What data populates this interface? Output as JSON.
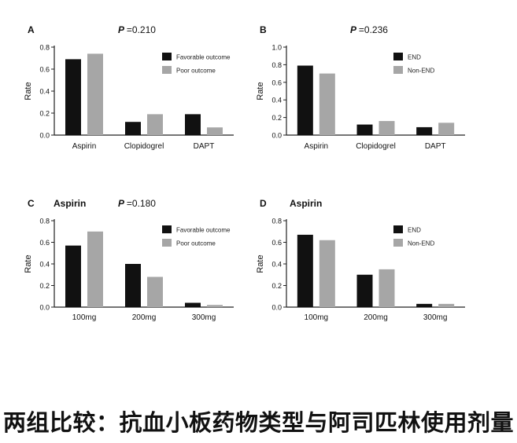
{
  "caption": "两组比较：抗血小板药物类型与阿司匹林使用剂量",
  "colors": {
    "series_a": "#111111",
    "series_b": "#a6a6a6",
    "axis": "#222222"
  },
  "chart_data": [
    {
      "panel": "A",
      "type": "bar",
      "subtitle": "",
      "p_label": "P",
      "p_value": "=0.210",
      "ylabel": "Rate",
      "ylim": [
        0,
        0.8
      ],
      "yticks": [
        "0.0",
        "0.2",
        "0.4",
        "0.6",
        "0.8"
      ],
      "categories": [
        "Aspirin",
        "Clopidogrel",
        "DAPT"
      ],
      "series": [
        {
          "name": "Favorable outcome",
          "values": [
            0.69,
            0.12,
            0.19
          ]
        },
        {
          "name": "Poor outcome",
          "values": [
            0.74,
            0.19,
            0.07
          ]
        }
      ]
    },
    {
      "panel": "B",
      "type": "bar",
      "subtitle": "",
      "p_label": "P",
      "p_value": "=0.236",
      "ylabel": "Rate",
      "ylim": [
        0,
        1.0
      ],
      "yticks": [
        "0.0",
        "0.2",
        "0.4",
        "0.6",
        "0.8",
        "1.0"
      ],
      "categories": [
        "Aspirin",
        "Clopidogrel",
        "DAPT"
      ],
      "series": [
        {
          "name": "END",
          "values": [
            0.79,
            0.12,
            0.09
          ]
        },
        {
          "name": "Non-END",
          "values": [
            0.7,
            0.16,
            0.14
          ]
        }
      ]
    },
    {
      "panel": "C",
      "type": "bar",
      "subtitle": "Aspirin",
      "p_label": "P",
      "p_value": "=0.180",
      "ylabel": "Rate",
      "ylim": [
        0,
        0.8
      ],
      "yticks": [
        "0.0",
        "0.2",
        "0.4",
        "0.6",
        "0.8"
      ],
      "categories": [
        "100mg",
        "200mg",
        "300mg"
      ],
      "series": [
        {
          "name": "Favorable outcome",
          "values": [
            0.57,
            0.4,
            0.04
          ]
        },
        {
          "name": "Poor outcome",
          "values": [
            0.7,
            0.28,
            0.02
          ]
        }
      ]
    },
    {
      "panel": "D",
      "type": "bar",
      "subtitle": "Aspirin",
      "p_label": "",
      "p_value": "",
      "ylabel": "Rate",
      "ylim": [
        0,
        0.8
      ],
      "yticks": [
        "0.0",
        "0.2",
        "0.4",
        "0.6",
        "0.8"
      ],
      "categories": [
        "100mg",
        "200mg",
        "300mg"
      ],
      "series": [
        {
          "name": "END",
          "values": [
            0.67,
            0.3,
            0.03
          ]
        },
        {
          "name": "Non-END",
          "values": [
            0.62,
            0.35,
            0.03
          ]
        }
      ]
    }
  ]
}
